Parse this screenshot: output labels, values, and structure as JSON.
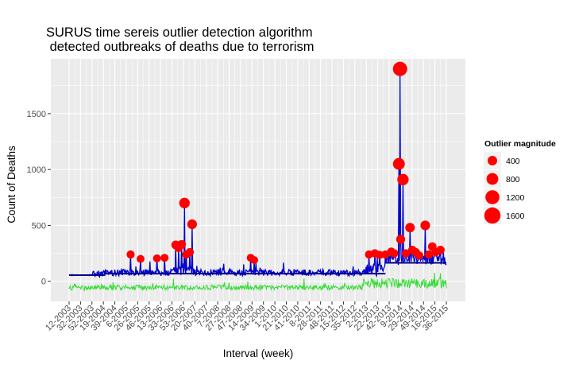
{
  "chart_data": {
    "type": "line",
    "title_line1": "SURUS time sereis outlier detection algorithm",
    "title_line2": " detected outbreaks of deaths due to terrorism",
    "xlabel": "Interval (week)",
    "ylabel": "Count of Deaths",
    "ylim": [
      -180,
      1990
    ],
    "y_ticks": [
      0,
      500,
      1000,
      1500
    ],
    "grid": true,
    "x_tick_labels": [
      "12-2003",
      "32-2003",
      "52-2003",
      "19-2004",
      "39-2004",
      "6-2005",
      "26-2005",
      "46-2005",
      "13-2006",
      "33-2006",
      "53-2006",
      "20-2007",
      "40-2007",
      "7-2008",
      "27-2008",
      "47-2008",
      "14-2009",
      "34-2009",
      "1-2010",
      "21-2010",
      "41-2010",
      "8-2011",
      "28-2011",
      "48-2011",
      "15-2012",
      "35-2012",
      "2-2013",
      "22-2013",
      "42-2013",
      "9-2014",
      "29-2014",
      "49-2014",
      "16-2015",
      "36-2015"
    ],
    "week_range": [
      0,
      644
    ],
    "series": [
      {
        "role": "observed",
        "color": "#0000cc"
      },
      {
        "role": "baseline",
        "color": "#00008b"
      },
      {
        "role": "residual",
        "color": "#33dd33"
      }
    ],
    "baseline_segments": [
      {
        "from_week": 0,
        "to_week": 60,
        "value": 55
      },
      {
        "from_week": 60,
        "to_week": 540,
        "value": 68
      },
      {
        "from_week": 540,
        "to_week": 644,
        "value": 165
      }
    ],
    "outliers": [
      {
        "week": 105,
        "value": 240,
        "magnitude": 240
      },
      {
        "week": 122,
        "value": 200,
        "magnitude": 200
      },
      {
        "week": 150,
        "value": 205,
        "magnitude": 205
      },
      {
        "week": 163,
        "value": 210,
        "magnitude": 210
      },
      {
        "week": 182,
        "value": 325,
        "magnitude": 325
      },
      {
        "week": 187,
        "value": 300,
        "magnitude": 300
      },
      {
        "week": 192,
        "value": 330,
        "magnitude": 330
      },
      {
        "week": 197,
        "value": 700,
        "magnitude": 700
      },
      {
        "week": 200,
        "value": 240,
        "magnitude": 240
      },
      {
        "week": 206,
        "value": 260,
        "magnitude": 260
      },
      {
        "week": 210,
        "value": 510,
        "magnitude": 510
      },
      {
        "week": 310,
        "value": 210,
        "magnitude": 210
      },
      {
        "week": 316,
        "value": 190,
        "magnitude": 190
      },
      {
        "week": 512,
        "value": 240,
        "magnitude": 240
      },
      {
        "week": 522,
        "value": 250,
        "magnitude": 250
      },
      {
        "week": 530,
        "value": 235,
        "magnitude": 235
      },
      {
        "week": 540,
        "value": 240,
        "magnitude": 240
      },
      {
        "week": 550,
        "value": 265,
        "magnitude": 265
      },
      {
        "week": 555,
        "value": 250,
        "magnitude": 250
      },
      {
        "week": 563,
        "value": 1050,
        "magnitude": 1050
      },
      {
        "week": 565,
        "value": 1900,
        "magnitude": 1900
      },
      {
        "week": 566,
        "value": 375,
        "magnitude": 375
      },
      {
        "week": 570,
        "value": 910,
        "magnitude": 910
      },
      {
        "week": 575,
        "value": 250,
        "magnitude": 250
      },
      {
        "week": 582,
        "value": 480,
        "magnitude": 480
      },
      {
        "week": 586,
        "value": 280,
        "magnitude": 280
      },
      {
        "week": 592,
        "value": 260,
        "magnitude": 260
      },
      {
        "week": 598,
        "value": 230,
        "magnitude": 230
      },
      {
        "week": 608,
        "value": 500,
        "magnitude": 500
      },
      {
        "week": 614,
        "value": 240,
        "magnitude": 240
      },
      {
        "week": 620,
        "value": 310,
        "magnitude": 310
      },
      {
        "week": 626,
        "value": 260,
        "magnitude": 260
      },
      {
        "week": 634,
        "value": 280,
        "magnitude": 280
      }
    ],
    "legend": {
      "title": "Outlier magnitude",
      "placement": "right",
      "entries": [
        {
          "label": "400",
          "magnitude": 400
        },
        {
          "label": "800",
          "magnitude": 800
        },
        {
          "label": "1200",
          "magnitude": 1200
        },
        {
          "label": "1600",
          "magnitude": 1600
        }
      ]
    },
    "colors": {
      "panel": "#ebebeb",
      "grid": "#ffffff",
      "outlier": "#ff0000"
    }
  }
}
